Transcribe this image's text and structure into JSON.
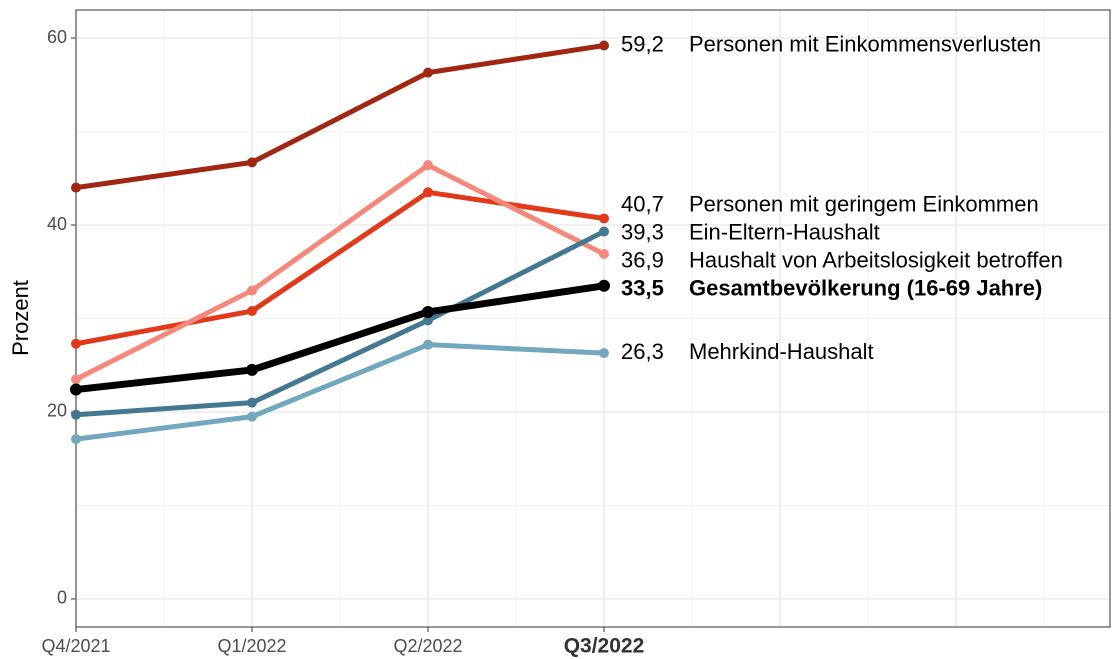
{
  "chart_data": {
    "type": "line",
    "y_label": "Prozent",
    "categories": [
      "Q4/2021",
      "Q1/2022",
      "Q2/2022",
      "Q3/2022"
    ],
    "bold_category_index": 3,
    "xlim": [
      0,
      5.875
    ],
    "ylim": [
      -3,
      63
    ],
    "yticks": [
      0,
      20,
      40,
      60
    ],
    "minor_yticks": [
      10,
      30,
      50
    ],
    "grid": true,
    "series": [
      {
        "name": "Personen mit Einkommensverlusten",
        "color": "#a02812",
        "values": [
          44.0,
          46.7,
          56.3,
          59.2
        ],
        "value_labels": [
          null,
          null,
          null,
          "59,2"
        ]
      },
      {
        "name": "Personen mit geringem Einkommen",
        "color": "#e03a1a",
        "values": [
          27.3,
          30.8,
          43.5,
          40.7
        ],
        "value_labels": [
          null,
          null,
          null,
          "40,7"
        ]
      },
      {
        "name": "Haushalt von Arbeitslosigkeit betroffen",
        "color": "#f4887a",
        "values": [
          23.5,
          33.0,
          46.4,
          36.9
        ],
        "value_labels": [
          null,
          null,
          null,
          "36,9"
        ]
      },
      {
        "name": "Mehrkind-Haushalt",
        "color": "#72a7c0",
        "values": [
          17.1,
          19.5,
          27.2,
          26.3
        ],
        "value_labels": [
          null,
          null,
          null,
          "26,3"
        ]
      },
      {
        "name": "Ein-Eltern-Haushalt",
        "color": "#437890",
        "values": [
          19.7,
          21.0,
          29.8,
          39.3
        ],
        "value_labels": [
          null,
          null,
          null,
          "39,3"
        ]
      },
      {
        "name": "Gesamtbevölkerung (16-69 Jahre)",
        "color": "#000000",
        "bold": true,
        "values": [
          22.4,
          24.5,
          30.7,
          33.5
        ],
        "value_labels": [
          null,
          null,
          null,
          "33,5"
        ]
      }
    ]
  }
}
